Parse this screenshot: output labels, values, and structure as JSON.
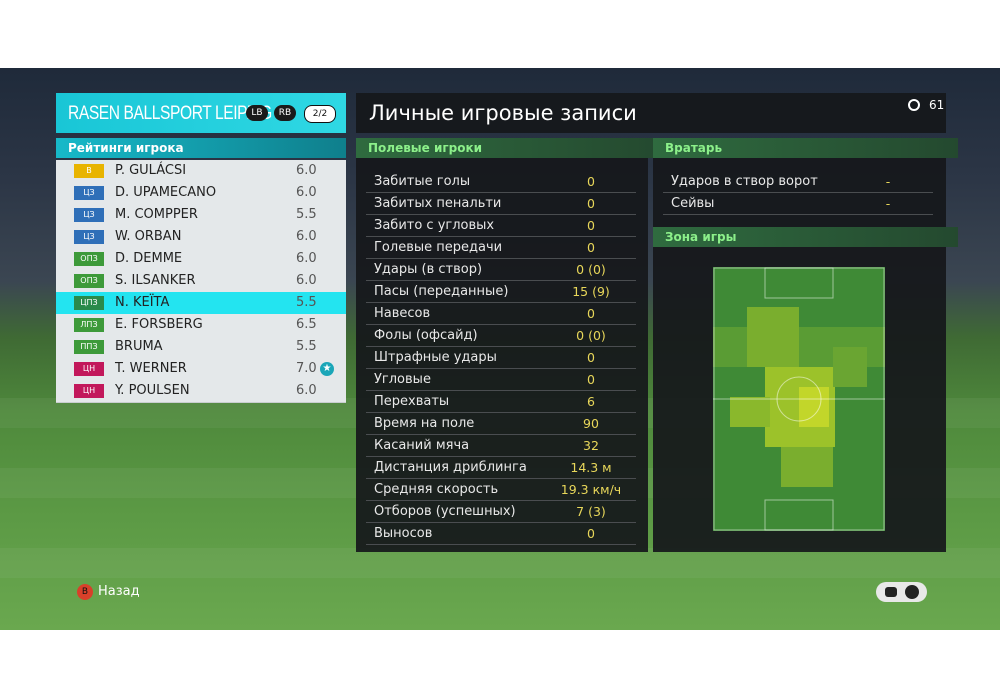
{
  "team_panel": {
    "team": "RASEN BALLSPORT LEIPZIG",
    "buttons": [
      "LB",
      "RB"
    ],
    "page": "2/2",
    "section": "Рейтинги игрока",
    "players": [
      {
        "position": "В",
        "color": "#e8b400",
        "name": "P. GULÁCSI",
        "rating": "6.0"
      },
      {
        "position": "ЦЗ",
        "color": "#2f6fb8",
        "name": "D. UPAMECANO",
        "rating": "6.0"
      },
      {
        "position": "ЦЗ",
        "color": "#2f6fb8",
        "name": "M. COMPPER",
        "rating": "5.5"
      },
      {
        "position": "ЦЗ",
        "color": "#2f6fb8",
        "name": "W. ORBAN",
        "rating": "6.0"
      },
      {
        "position": "ОПЗ",
        "color": "#3d9a3a",
        "name": "D. DEMME",
        "rating": "6.0"
      },
      {
        "position": "ОПЗ",
        "color": "#3d9a3a",
        "name": "S. ILSANKER",
        "rating": "6.0"
      },
      {
        "position": "ЦПЗ",
        "color": "#2a8a4a",
        "name": "N. KEÏTA",
        "rating": "5.5",
        "selected": true
      },
      {
        "position": "ЛПЗ",
        "color": "#3d9a3a",
        "name": "E. FORSBERG",
        "rating": "6.5"
      },
      {
        "position": "ППЗ",
        "color": "#3d9a3a",
        "name": "BRUMA",
        "rating": "5.5"
      },
      {
        "position": "ЦН",
        "color": "#c2185b",
        "name": "T. WERNER",
        "rating": "7.0",
        "star": true
      },
      {
        "position": "ЦН",
        "color": "#c2185b",
        "name": "Y. POULSEN",
        "rating": "6.0"
      }
    ]
  },
  "main_panel": {
    "title": "Личные игровые записи",
    "timer": "61",
    "field_players": {
      "heading": "Полевые игроки",
      "stats": [
        {
          "label": "Забитые голы",
          "value": "0"
        },
        {
          "label": "Забитых пенальти",
          "value": "0"
        },
        {
          "label": "Забито с угловых",
          "value": "0"
        },
        {
          "label": "Голевые передачи",
          "value": "0"
        },
        {
          "label": "Удары (в створ)",
          "value": "0 (0)"
        },
        {
          "label": "Пасы (переданные)",
          "value": "15 (9)"
        },
        {
          "label": "Навесов",
          "value": "0"
        },
        {
          "label": "Фолы (офсайд)",
          "value": "0 (0)"
        },
        {
          "label": "Штрафные удары",
          "value": "0"
        },
        {
          "label": "Угловые",
          "value": "0"
        },
        {
          "label": "Перехваты",
          "value": "6"
        },
        {
          "label": "Время на поле",
          "value": "90"
        },
        {
          "label": "Касаний мяча",
          "value": "32"
        },
        {
          "label": "Дистанция дриблинга",
          "value": "14.3 м"
        },
        {
          "label": "Средняя скорость",
          "value": "19.3 км/ч"
        },
        {
          "label": "Отборов (успешных)",
          "value": "7 (3)"
        },
        {
          "label": "Выносов",
          "value": "0"
        }
      ]
    },
    "goalkeeper": {
      "heading": "Вратарь",
      "stats": [
        {
          "label": "Ударов в створ ворот",
          "value": "-"
        },
        {
          "label": "Сейвы",
          "value": "-"
        }
      ]
    },
    "zone": {
      "heading": "Зона игры"
    }
  },
  "footer": {
    "back_button": "B",
    "back": "Назад"
  }
}
